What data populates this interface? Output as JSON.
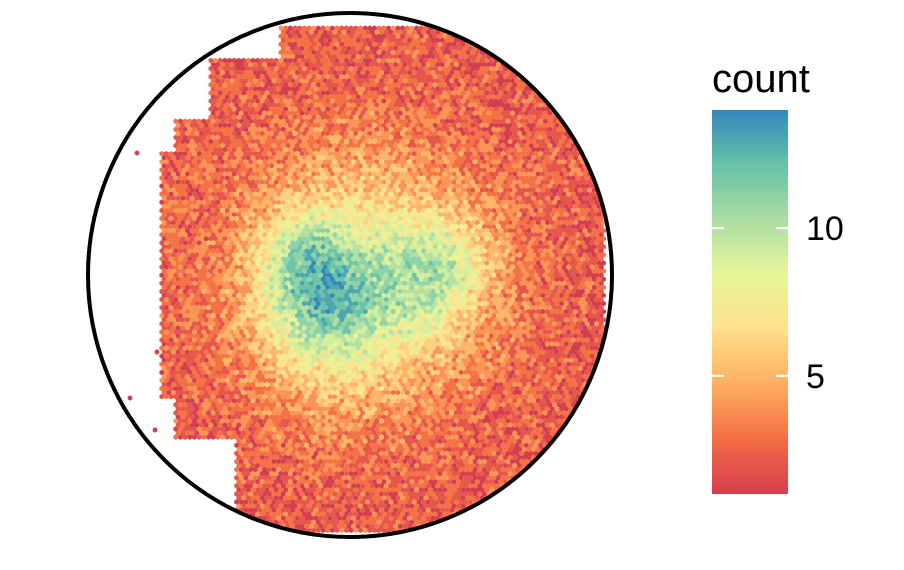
{
  "chart_data": {
    "type": "heatmap",
    "subtype": "hexbin",
    "boundary": "circle",
    "grid": false,
    "axes_visible": false,
    "color_scale": {
      "name": "Spectral",
      "min": 1,
      "max": 14,
      "colors": [
        "#d53e4f",
        "#f46d43",
        "#fdae61",
        "#fee08b",
        "#e6f598",
        "#abdda4",
        "#66c2a5",
        "#3288bd"
      ]
    },
    "legend": {
      "title": "count",
      "ticks": [
        5,
        10
      ],
      "placement": "right"
    }
  }
}
